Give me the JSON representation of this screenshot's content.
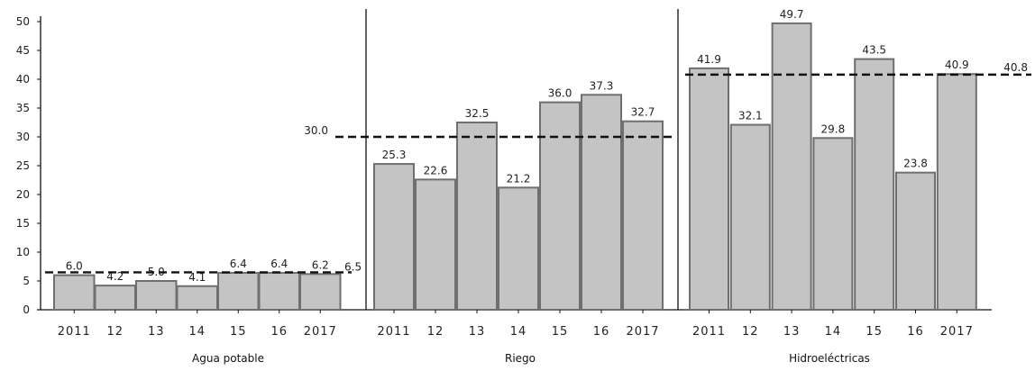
{
  "chart_data": {
    "type": "bar",
    "y_ticks": [
      "0",
      "5",
      "10",
      "15",
      "20",
      "25",
      "30",
      "35",
      "40",
      "45",
      "50"
    ],
    "ylim": [
      0,
      50
    ],
    "grid": false,
    "legend": "none",
    "colors": {
      "bar_fill": "#c4c4c4",
      "bar_stroke": "#6f6f6f",
      "axis": "#111111",
      "reference_line": "#111111"
    },
    "panels": [
      {
        "name": "Agua potable",
        "categories": [
          "2011",
          "12",
          "13",
          "14",
          "15",
          "16",
          "2017"
        ],
        "values": [
          6.0,
          4.2,
          5.0,
          4.1,
          6.4,
          6.4,
          6.2
        ],
        "value_labels": [
          "6.0",
          "4.2",
          "5.0",
          "4.1",
          "6.4",
          "6.4",
          "6.2"
        ],
        "average": 6.5,
        "average_label": "6.5"
      },
      {
        "name": "Riego",
        "categories": [
          "2011",
          "12",
          "13",
          "14",
          "15",
          "16",
          "2017"
        ],
        "values": [
          25.3,
          22.6,
          32.5,
          21.2,
          36.0,
          37.3,
          32.7
        ],
        "value_labels": [
          "25.3",
          "22.6",
          "32.5",
          "21.2",
          "36.0",
          "37.3",
          "32.7"
        ],
        "average": 30.0,
        "average_label": "30.0"
      },
      {
        "name": "Hidroeléctricas",
        "categories": [
          "2011",
          "12",
          "13",
          "14",
          "15",
          "16",
          "2017"
        ],
        "values": [
          41.9,
          32.1,
          49.7,
          29.8,
          43.5,
          23.8,
          40.9
        ],
        "value_labels": [
          "41.9",
          "32.1",
          "49.7",
          "29.8",
          "43.5",
          "23.8",
          "40.9"
        ],
        "average": 40.8,
        "average_label": "40.8"
      }
    ]
  }
}
